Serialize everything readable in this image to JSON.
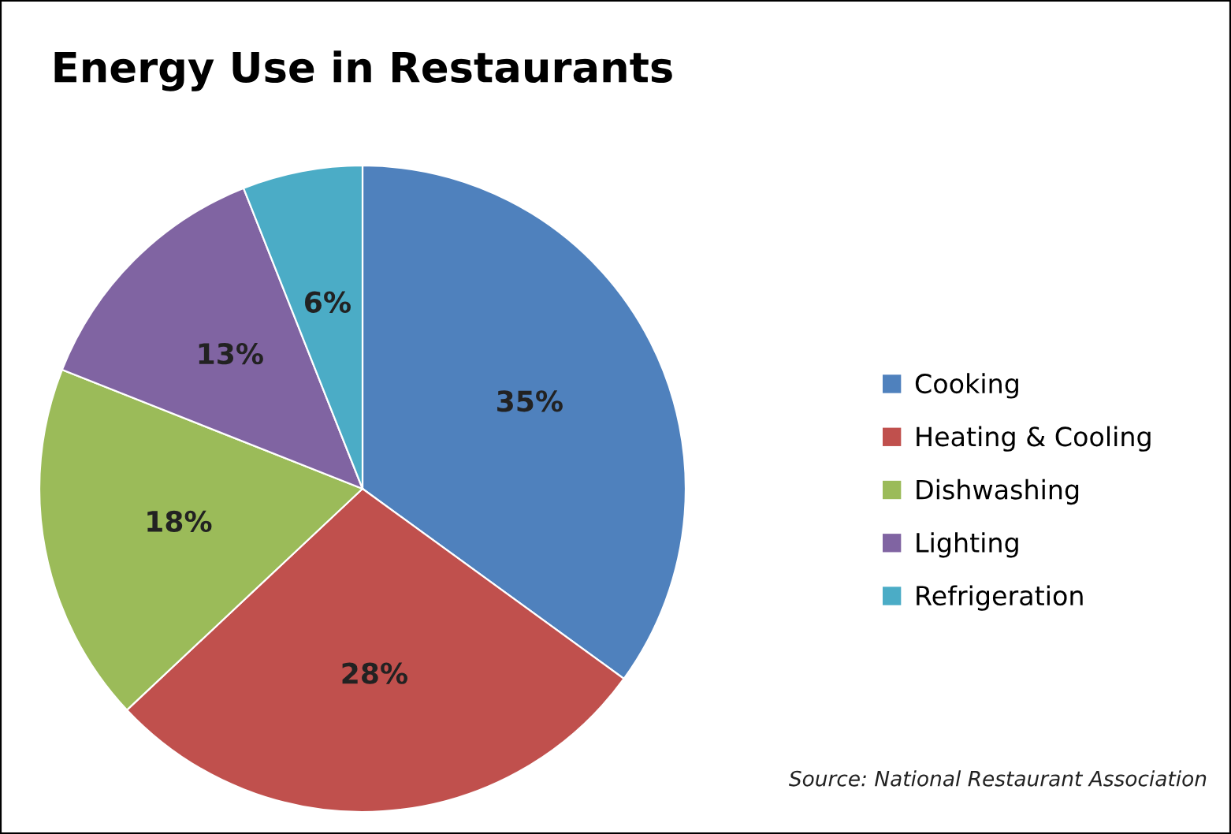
{
  "chart_data": {
    "type": "pie",
    "title": "Energy Use in Restaurants",
    "categories": [
      "Cooking",
      "Heating & Cooling",
      "Dishwashing",
      "Lighting",
      "Refrigeration"
    ],
    "values": [
      35,
      28,
      18,
      13,
      6
    ],
    "colors": [
      "#4f81bd",
      "#c0504d",
      "#9bbb59",
      "#8064a2",
      "#4bacc6"
    ],
    "value_labels": [
      "35%",
      "28%",
      "18%",
      "13%",
      "6%"
    ],
    "legend": "right",
    "annotations": [
      "Source: National Restaurant Association"
    ]
  }
}
